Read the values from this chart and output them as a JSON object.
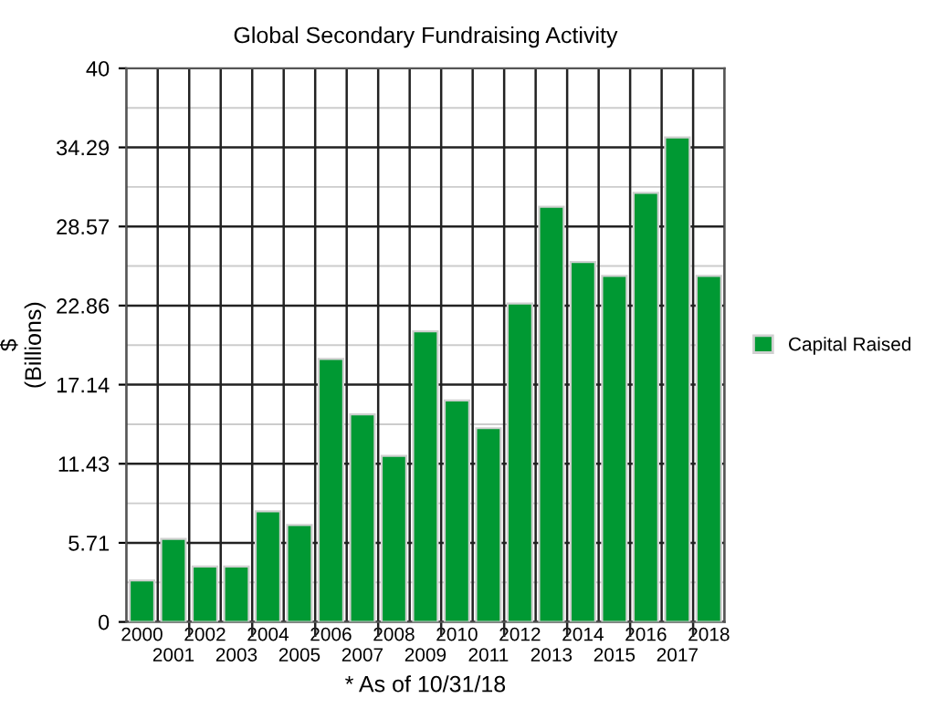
{
  "chart_data": {
    "type": "bar",
    "title": "Global Secondary Fundraising Activity",
    "xlabel": "* As of 10/31/18",
    "ylabel": "$\n(Billions)",
    "categories": [
      "2000",
      "2001",
      "2002",
      "2003",
      "2004",
      "2005",
      "2006",
      "2007",
      "2008",
      "2009",
      "2010",
      "2011",
      "2012",
      "2013",
      "2014",
      "2015",
      "2016",
      "2017",
      "2018"
    ],
    "series": [
      {
        "name": "Capital Raised",
        "color": "#009933",
        "values": [
          3,
          6,
          4,
          4,
          8,
          7,
          19,
          15,
          12,
          21,
          16,
          14,
          23,
          30,
          26,
          25,
          31,
          35,
          25
        ]
      }
    ],
    "ylim": [
      0,
      40
    ],
    "yticks": [
      0,
      {
        "value": 5.714,
        "label": "5.71"
      },
      {
        "value": 11.429,
        "label": "11.43"
      },
      {
        "value": 17.143,
        "label": "17.14"
      },
      {
        "value": 22.857,
        "label": "22.86"
      },
      {
        "value": 28.571,
        "label": "28.57"
      },
      {
        "value": 34.286,
        "label": "34.29"
      },
      40
    ],
    "grid": true,
    "legend": "right"
  }
}
